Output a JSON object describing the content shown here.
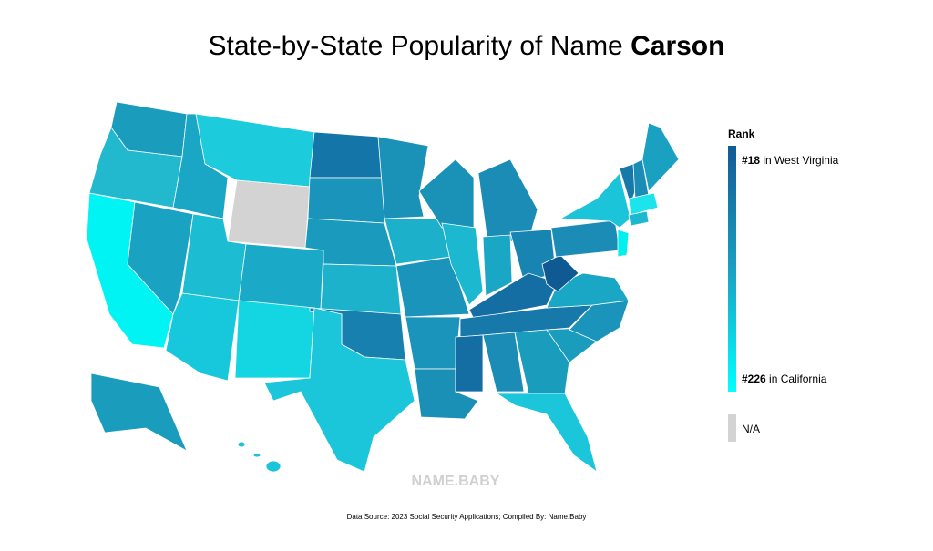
{
  "header": {
    "title": "State-by-State Popularity of Name",
    "name": "Carson"
  },
  "legend": {
    "title": "Rank",
    "top": {
      "rank": "#18",
      "text": "in West Virginia"
    },
    "bottom": {
      "rank": "#226",
      "text": "in California"
    },
    "na": "N/A"
  },
  "watermark": "NAME.BABY",
  "footer": {
    "source": "Data Source: 2023 Social Security Applications; Compiled By: Name.Baby"
  }
}
